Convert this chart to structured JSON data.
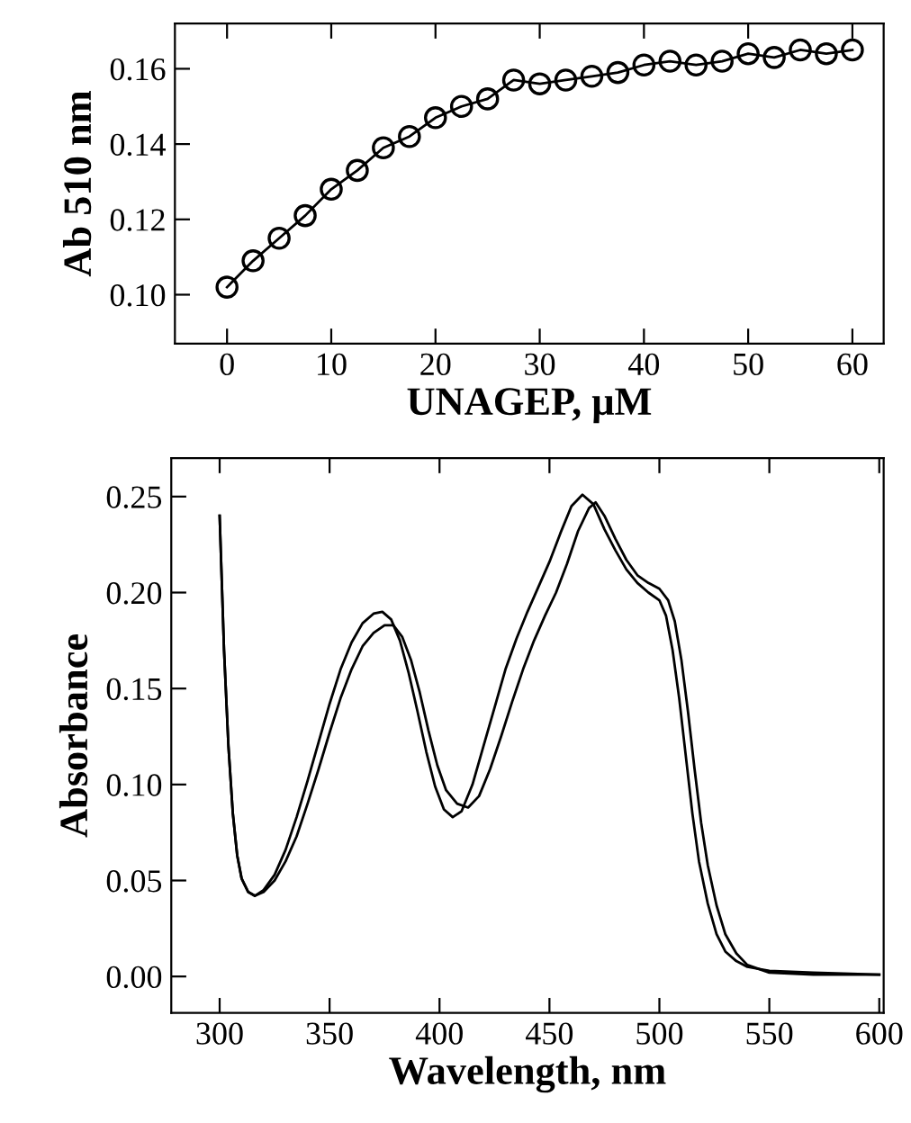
{
  "chart_data": [
    {
      "type": "line",
      "xlabel": "UNAGEP, μM",
      "ylabel": "Ab 510 nm",
      "marker": "circle",
      "line_style": "solid",
      "grid": false,
      "legend": false,
      "xlim": [
        -5,
        63
      ],
      "ylim": [
        0.087,
        0.172
      ],
      "xticks": [
        0,
        10,
        20,
        30,
        40,
        50,
        60
      ],
      "yticks": [
        {
          "value": 0.1,
          "label": "0.10"
        },
        {
          "value": 0.12,
          "label": "0.12"
        },
        {
          "value": 0.14,
          "label": "0.14"
        },
        {
          "value": 0.16,
          "label": "0.16"
        }
      ],
      "series": [
        {
          "color": "#000000",
          "x": [
            0,
            2.5,
            5,
            7.5,
            10,
            12.5,
            15,
            17.5,
            20,
            22.5,
            25,
            27.5,
            30,
            32.5,
            35,
            37.5,
            40,
            42.5,
            45,
            47.5,
            50,
            52.5,
            55,
            57.5,
            60
          ],
          "values": [
            0.102,
            0.109,
            0.115,
            0.121,
            0.128,
            0.133,
            0.139,
            0.142,
            0.147,
            0.15,
            0.152,
            0.157,
            0.156,
            0.157,
            0.158,
            0.159,
            0.161,
            0.162,
            0.161,
            0.162,
            0.164,
            0.163,
            0.165,
            0.164,
            0.165
          ]
        }
      ]
    },
    {
      "type": "line",
      "xlabel": "Wavelength, nm",
      "ylabel": "Absorbance",
      "marker": "none",
      "line_style": "solid",
      "grid": false,
      "legend": false,
      "xlim": [
        278,
        602
      ],
      "ylim": [
        -0.019,
        0.27
      ],
      "xticks": [
        300,
        350,
        400,
        450,
        500,
        550,
        600
      ],
      "yticks": [
        {
          "value": 0,
          "label": "0.00"
        },
        {
          "value": 0.05,
          "label": "0.05"
        },
        {
          "value": 0.1,
          "label": "0.10"
        },
        {
          "value": 0.15,
          "label": "0.15"
        },
        {
          "value": 0.2,
          "label": "0.20"
        },
        {
          "value": 0.25,
          "label": "0.25"
        }
      ],
      "series": [
        {
          "color": "#000000",
          "x": [
            300,
            302,
            304,
            306,
            308,
            310,
            313,
            316,
            320,
            325,
            330,
            335,
            340,
            345,
            350,
            355,
            360,
            365,
            370,
            374,
            378,
            382,
            386,
            390,
            394,
            398,
            402,
            406,
            410,
            415,
            420,
            425,
            430,
            435,
            440,
            445,
            450,
            455,
            460,
            465,
            470,
            475,
            480,
            485,
            490,
            495,
            500,
            503,
            506,
            509,
            512,
            515,
            518,
            522,
            526,
            530,
            535,
            540,
            550,
            570,
            600
          ],
          "values": [
            0.24,
            0.17,
            0.12,
            0.085,
            0.063,
            0.051,
            0.044,
            0.042,
            0.045,
            0.053,
            0.066,
            0.083,
            0.102,
            0.122,
            0.142,
            0.16,
            0.174,
            0.184,
            0.189,
            0.19,
            0.186,
            0.175,
            0.158,
            0.138,
            0.117,
            0.099,
            0.087,
            0.083,
            0.086,
            0.1,
            0.12,
            0.14,
            0.16,
            0.176,
            0.19,
            0.203,
            0.216,
            0.231,
            0.245,
            0.251,
            0.246,
            0.233,
            0.222,
            0.212,
            0.205,
            0.2,
            0.196,
            0.188,
            0.17,
            0.145,
            0.115,
            0.085,
            0.06,
            0.038,
            0.022,
            0.013,
            0.008,
            0.005,
            0.003,
            0.002,
            0.001
          ]
        },
        {
          "color": "#000000",
          "x": [
            300,
            302,
            304,
            306,
            308,
            310,
            313,
            316,
            320,
            325,
            330,
            335,
            340,
            345,
            350,
            355,
            360,
            365,
            370,
            375,
            379,
            383,
            387,
            391,
            395,
            399,
            403,
            408,
            413,
            418,
            423,
            428,
            433,
            438,
            443,
            448,
            453,
            458,
            463,
            468,
            471,
            475,
            480,
            485,
            490,
            495,
            500,
            504,
            507,
            510,
            513,
            516,
            519,
            522,
            526,
            530,
            535,
            540,
            550,
            570,
            600
          ],
          "values": [
            0.24,
            0.17,
            0.12,
            0.085,
            0.063,
            0.051,
            0.044,
            0.042,
            0.044,
            0.05,
            0.06,
            0.073,
            0.09,
            0.108,
            0.127,
            0.145,
            0.16,
            0.172,
            0.179,
            0.183,
            0.183,
            0.177,
            0.165,
            0.148,
            0.128,
            0.11,
            0.097,
            0.09,
            0.088,
            0.094,
            0.108,
            0.125,
            0.143,
            0.16,
            0.175,
            0.188,
            0.2,
            0.215,
            0.232,
            0.244,
            0.247,
            0.24,
            0.228,
            0.217,
            0.209,
            0.205,
            0.202,
            0.196,
            0.185,
            0.165,
            0.138,
            0.108,
            0.08,
            0.058,
            0.037,
            0.022,
            0.012,
            0.006,
            0.002,
            0.001,
            0.001
          ]
        }
      ]
    }
  ]
}
